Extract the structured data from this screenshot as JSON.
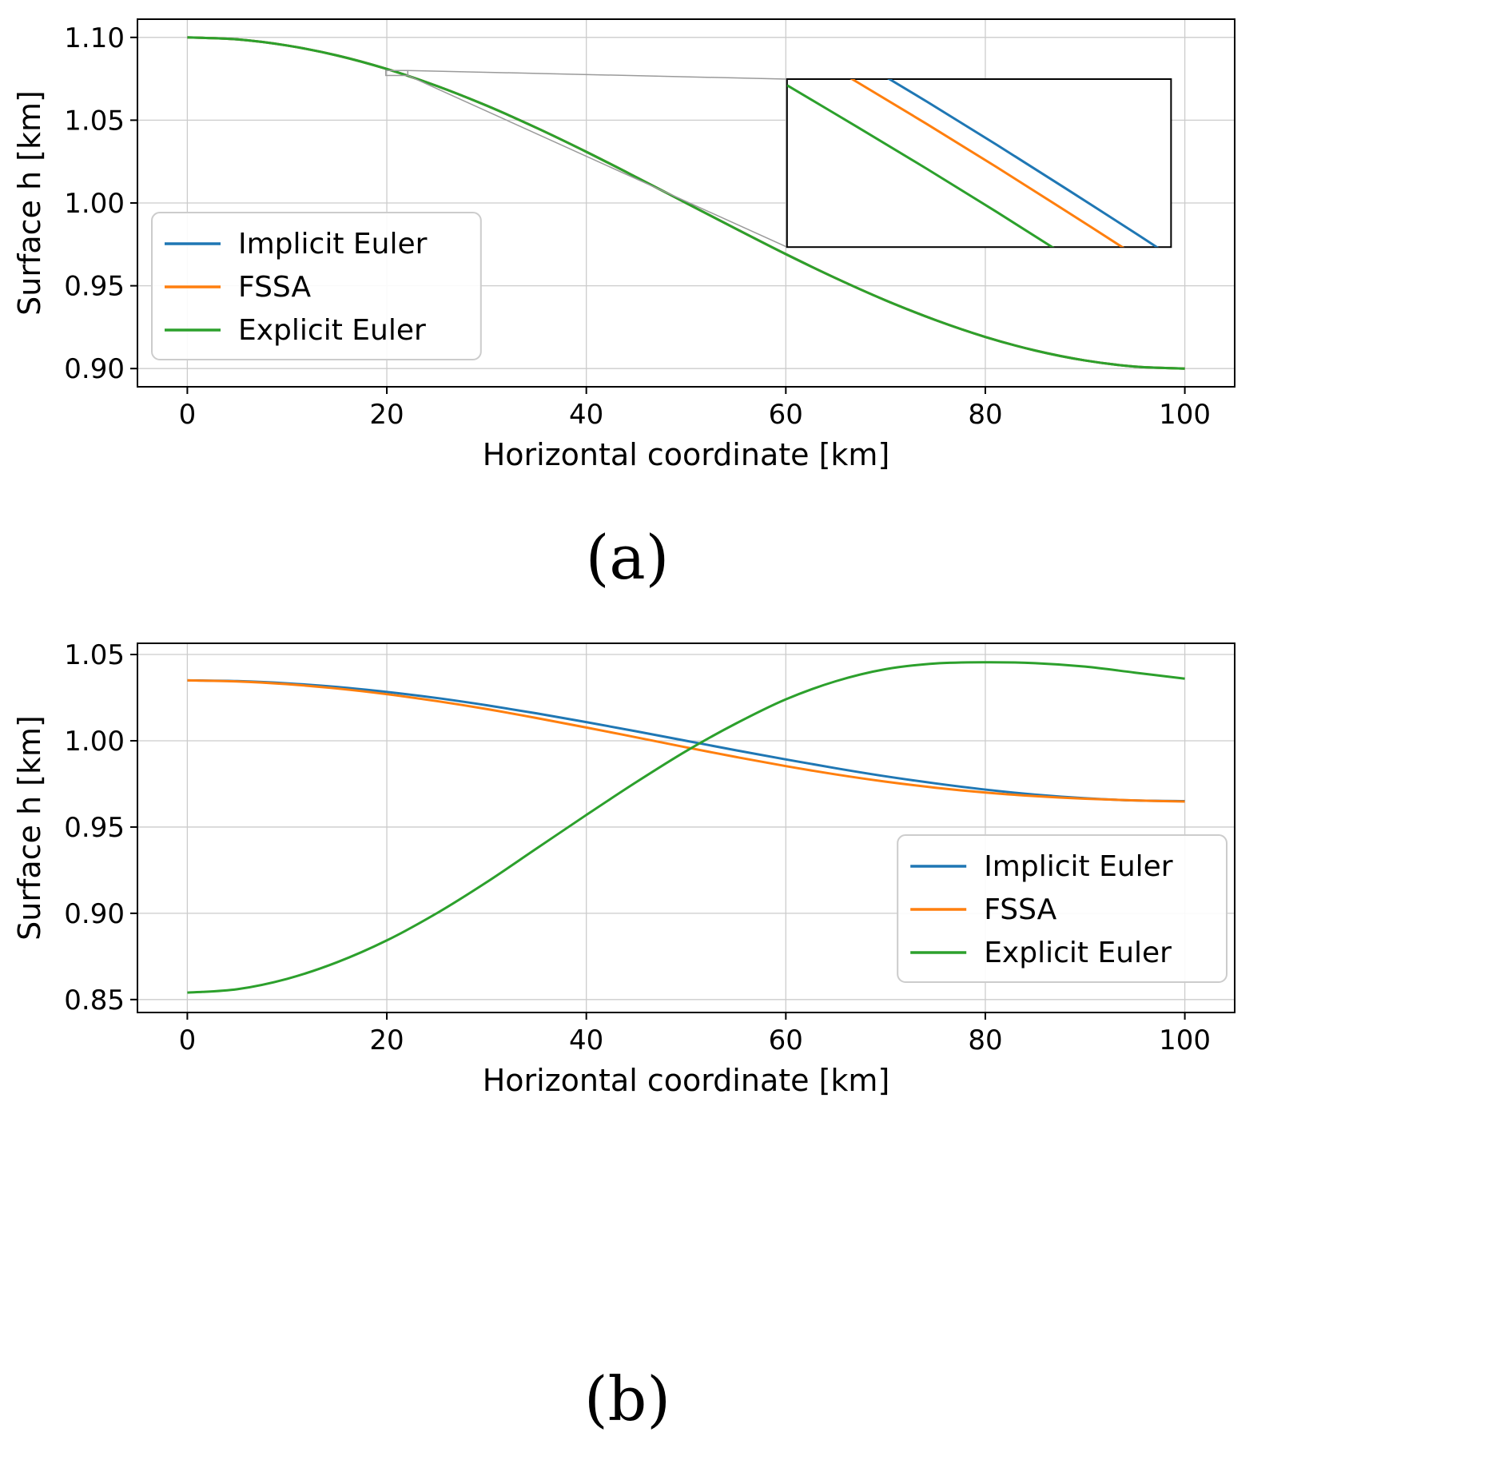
{
  "figure": {
    "captions": [
      "(a)",
      "(b)"
    ]
  },
  "colors": {
    "implicit_euler": "#1f77b4",
    "fssa": "#ff7f0e",
    "explicit_euler": "#2ca02c",
    "grid": "#cccccc",
    "connector": "#9a9a9a"
  },
  "chart_data": [
    {
      "id": "chart-a",
      "type": "line",
      "title": "",
      "xlabel": "Horizontal coordinate [km]",
      "ylabel": "Surface h [km]",
      "xlim": [
        -5,
        105
      ],
      "ylim": [
        0.889,
        1.111
      ],
      "xticks": [
        0,
        20,
        40,
        60,
        80,
        100
      ],
      "xtick_labels": [
        "0",
        "20",
        "40",
        "60",
        "80",
        "100"
      ],
      "yticks": [
        0.9,
        0.95,
        1.0,
        1.05,
        1.1
      ],
      "ytick_labels": [
        "0.90",
        "0.95",
        "1.00",
        "1.05",
        "1.10"
      ],
      "grid": true,
      "legend_position": "center left",
      "x": [
        0,
        5,
        10,
        15,
        20,
        25,
        30,
        35,
        40,
        45,
        50,
        55,
        60,
        65,
        70,
        75,
        80,
        85,
        90,
        95,
        100
      ],
      "series": [
        {
          "name": "Implicit Euler",
          "color": "#1f77b4",
          "values": [
            1.1,
            1.0988,
            1.0951,
            1.0891,
            1.0809,
            1.0707,
            1.0588,
            1.0454,
            1.0309,
            1.0156,
            1.0,
            0.9844,
            0.9691,
            0.9546,
            0.9412,
            0.9293,
            0.9191,
            0.9109,
            0.9049,
            0.9012,
            0.9
          ]
        },
        {
          "name": "FSSA",
          "color": "#ff7f0e",
          "values": [
            1.1,
            1.0988,
            1.0951,
            1.0891,
            1.0809,
            1.0707,
            1.0588,
            1.0454,
            1.0309,
            1.0156,
            1.0,
            0.9844,
            0.9691,
            0.9546,
            0.9412,
            0.9293,
            0.9191,
            0.9109,
            0.9049,
            0.9012,
            0.9
          ]
        },
        {
          "name": "Explicit Euler",
          "color": "#2ca02c",
          "values": [
            1.1,
            1.0988,
            1.0951,
            1.0891,
            1.0809,
            1.0707,
            1.0588,
            1.0454,
            1.0309,
            1.0156,
            1.0,
            0.9844,
            0.9691,
            0.9546,
            0.9412,
            0.9293,
            0.9191,
            0.9109,
            0.9049,
            0.9012,
            0.9
          ]
        }
      ],
      "inset": {
        "frac": [
          0.592,
          0.163,
          0.942,
          0.62
        ],
        "xlim": [
          19.9,
          22.1
        ],
        "ylim": [
          1.077,
          1.08
        ],
        "indicator": {
          "x": [
            19.9,
            22.1
          ],
          "y": [
            1.077,
            1.08
          ]
        },
        "x": [
          19.9,
          20.3,
          20.7,
          21.1,
          21.5,
          21.9,
          22.1
        ],
        "series": [
          {
            "name": "Implicit Euler",
            "color": "#1f77b4",
            "values": [
              1.08109,
              1.08035,
              1.0796,
              1.07883,
              1.07804,
              1.07724,
              1.07683
            ]
          },
          {
            "name": "FSSA",
            "color": "#ff7f0e",
            "values": [
              1.08069,
              1.07995,
              1.0792,
              1.07843,
              1.07764,
              1.07684,
              1.07643
            ]
          },
          {
            "name": "Explicit Euler",
            "color": "#2ca02c",
            "values": [
              1.07989,
              1.07915,
              1.0784,
              1.07763,
              1.07684,
              1.07604,
              1.07563
            ]
          }
        ]
      }
    },
    {
      "id": "chart-b",
      "type": "line",
      "title": "",
      "xlabel": "Horizontal coordinate [km]",
      "ylabel": "Surface h [km]",
      "xlim": [
        -5,
        105
      ],
      "ylim": [
        0.8425,
        1.0565
      ],
      "xticks": [
        0,
        20,
        40,
        60,
        80,
        100
      ],
      "xtick_labels": [
        "0",
        "20",
        "40",
        "60",
        "80",
        "100"
      ],
      "yticks": [
        0.85,
        0.9,
        0.95,
        1.0,
        1.05
      ],
      "ytick_labels": [
        "0.85",
        "0.90",
        "0.95",
        "1.00",
        "1.05"
      ],
      "grid": true,
      "legend_position": "lower right",
      "x": [
        0,
        5,
        10,
        15,
        20,
        25,
        30,
        35,
        40,
        45,
        50,
        55,
        60,
        65,
        70,
        75,
        80,
        85,
        90,
        95,
        100
      ],
      "series": [
        {
          "name": "Implicit Euler",
          "color": "#1f77b4",
          "values": [
            1.035,
            1.0346,
            1.0333,
            1.0312,
            1.0283,
            1.0248,
            1.0206,
            1.0159,
            1.0108,
            1.0055,
            1.0,
            0.9945,
            0.9892,
            0.9841,
            0.9794,
            0.9753,
            0.9717,
            0.9688,
            0.9667,
            0.9654,
            0.965
          ]
        },
        {
          "name": "FSSA",
          "color": "#ff7f0e",
          "values": [
            1.035,
            1.0344,
            1.0328,
            1.0303,
            1.027,
            1.023,
            1.0184,
            1.0132,
            1.0077,
            1.002,
            0.9962,
            0.9906,
            0.9853,
            0.9805,
            0.9763,
            0.9728,
            0.97,
            0.9679,
            0.9664,
            0.9654,
            0.9648
          ]
        },
        {
          "name": "Explicit Euler",
          "color": "#2ca02c",
          "values": [
            0.854,
            0.856,
            0.862,
            0.8716,
            0.8843,
            0.9,
            0.918,
            0.9375,
            0.957,
            0.976,
            0.994,
            1.01,
            1.024,
            1.0345,
            1.0415,
            1.0448,
            1.0455,
            1.045,
            1.043,
            1.0395,
            1.036
          ]
        }
      ]
    }
  ]
}
